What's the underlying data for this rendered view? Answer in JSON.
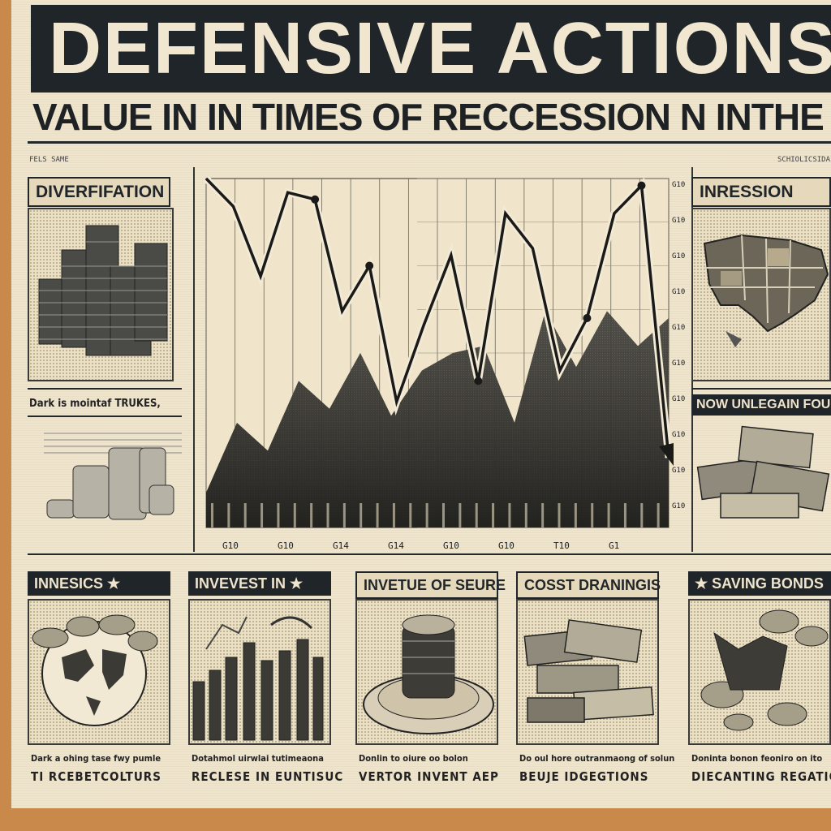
{
  "header": {
    "title": "DEFENSIVE ACTIONS:",
    "subtitle": "VALUE IN IN TIMES OF RECCESSION N INTHE .S.."
  },
  "top_small_labels": {
    "left": "FELS SAME",
    "right": "SCHIOLICSIDAIS"
  },
  "left_column": {
    "tag1": "DIVERFIFATION",
    "caption1": "Dark is mointaf TRUKES,"
  },
  "right_column": {
    "tag1": "INRESSION",
    "tag2": "NOW UNLEGAIN FOUND"
  },
  "chart_data": {
    "type": "area",
    "x_tick_labels": [
      "G10",
      "G10",
      "G14",
      "G14",
      "G10",
      "G10",
      "T10",
      "G1"
    ],
    "y_tick_labels": [
      "G10",
      "G10",
      "G10",
      "G10",
      "G10",
      "G10",
      "G10",
      "G10",
      "G10",
      "G10"
    ],
    "line_points_relative": [
      100,
      92,
      72,
      96,
      94,
      62,
      75,
      36,
      58,
      78,
      42,
      90,
      80,
      45,
      60,
      90,
      98,
      20
    ],
    "area_points_relative": [
      90,
      70,
      78,
      58,
      66,
      50,
      68,
      55,
      50,
      48,
      70,
      38,
      54,
      38,
      48,
      40
    ],
    "grid": true,
    "trend": "falling"
  },
  "bottom_panels": [
    {
      "tag": "INNESICS ★",
      "caption_small": "Dark a ohing tase fwy pumle",
      "caption_big": "TI RCEBETCOLTURS",
      "icon": "globe-coins-icon"
    },
    {
      "tag": "INVEVEST IN ★",
      "caption_small": "Dotahmol uirwlai tutimeaona",
      "caption_big": "RECLESE IN EUNTISUC",
      "icon": "bar-chart-icon"
    },
    {
      "tag": "INVETUE OF SEURE",
      "caption_small": "Donlin to oiure oo bolon",
      "caption_big": "VERTOR INVENT AEP",
      "icon": "coin-stack-icon"
    },
    {
      "tag": "COSST DRANINGIS",
      "caption_small": "Do oul hore outranmaong of solun",
      "caption_big": "BEUJE IDGEGTIONS",
      "icon": "cash-pile-icon"
    },
    {
      "tag": "★ SAVING BONDS",
      "caption_small": "Doninta bonon feoniro on ito",
      "caption_big": "DIECANTING REGATION",
      "icon": "bonds-coins-icon"
    }
  ],
  "colors": {
    "ink": "#1f2528",
    "paper": "#efe4cc",
    "frame": "#c9894a"
  }
}
